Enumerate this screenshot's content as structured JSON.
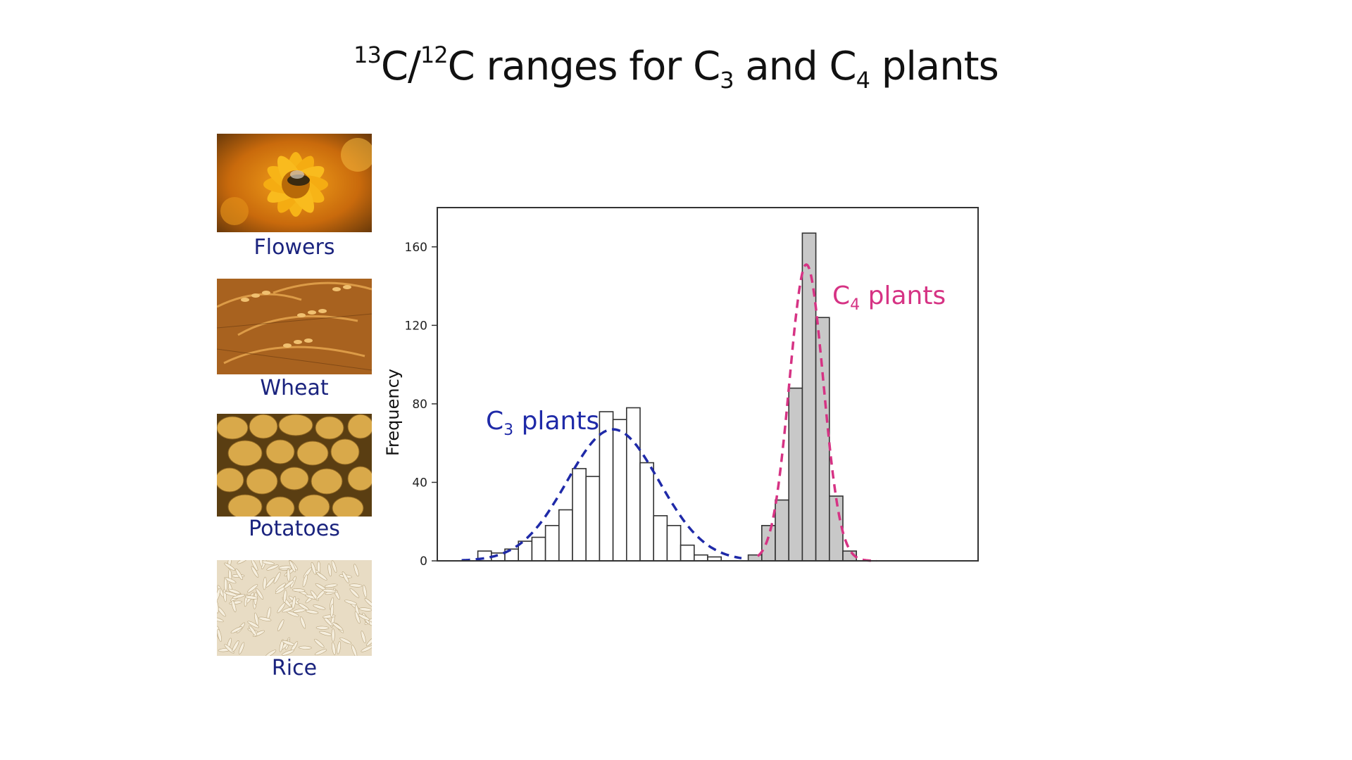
{
  "title": {
    "sup1": "13",
    "part1": "C/",
    "sup2": "12",
    "part2": "C ranges for C",
    "sub1": "3",
    "part3": " and C",
    "sub2": "4",
    "part4": " plants"
  },
  "images": [
    {
      "label": "Flowers",
      "icon": "flower-photo"
    },
    {
      "label": "Wheat",
      "icon": "wheat-photo"
    },
    {
      "label": "Potatoes",
      "icon": "potatoes-photo"
    },
    {
      "label": "Rice",
      "icon": "rice-photo"
    }
  ],
  "chart_data": {
    "type": "bar",
    "ylabel": "Frequency",
    "xlabel": "",
    "yticks": [
      0,
      40,
      80,
      120,
      160
    ],
    "ylim": [
      0,
      180
    ],
    "xlim": [
      0,
      40
    ],
    "grid": false,
    "series": [
      {
        "name": "C3 plants",
        "label_main": "C",
        "label_sub": "3",
        "label_rest": " plants",
        "color": "#1f2aa8",
        "bar_fill": "#ffffff",
        "bars": [
          {
            "x": 3.5,
            "value": 5
          },
          {
            "x": 4.5,
            "value": 4
          },
          {
            "x": 5.5,
            "value": 6
          },
          {
            "x": 6.5,
            "value": 10
          },
          {
            "x": 7.5,
            "value": 12
          },
          {
            "x": 8.5,
            "value": 18
          },
          {
            "x": 9.5,
            "value": 26
          },
          {
            "x": 10.5,
            "value": 47
          },
          {
            "x": 11.5,
            "value": 43
          },
          {
            "x": 12.5,
            "value": 76
          },
          {
            "x": 13.5,
            "value": 72
          },
          {
            "x": 14.5,
            "value": 78
          },
          {
            "x": 15.5,
            "value": 50
          },
          {
            "x": 16.5,
            "value": 23
          },
          {
            "x": 17.5,
            "value": 18
          },
          {
            "x": 18.5,
            "value": 8
          },
          {
            "x": 19.5,
            "value": 3
          },
          {
            "x": 20.5,
            "value": 2
          }
        ],
        "curve": {
          "mean": 13.0,
          "sd": 3.4,
          "peak": 67,
          "from": 1.8,
          "to": 22.5
        }
      },
      {
        "name": "C4 plants",
        "label_main": "C",
        "label_sub": "4",
        "label_rest": " plants",
        "color": "#d63384",
        "bar_fill": "#c8c8c8",
        "bars": [
          {
            "x": 23.5,
            "value": 3
          },
          {
            "x": 24.5,
            "value": 18
          },
          {
            "x": 25.5,
            "value": 31
          },
          {
            "x": 26.5,
            "value": 88
          },
          {
            "x": 27.5,
            "value": 167
          },
          {
            "x": 28.5,
            "value": 124
          },
          {
            "x": 29.5,
            "value": 33
          },
          {
            "x": 30.5,
            "value": 5
          }
        ],
        "curve": {
          "mean": 27.3,
          "sd": 1.25,
          "peak": 151,
          "from": 23.7,
          "to": 32.5
        }
      }
    ]
  }
}
